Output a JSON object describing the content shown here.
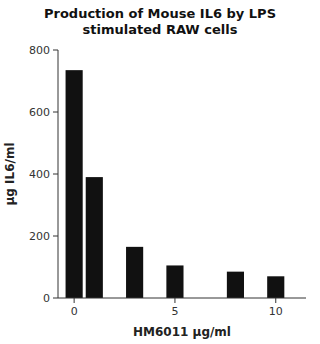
{
  "chart_data": {
    "type": "bar",
    "title": "Production of Mouse IL6 by LPS\nstimulated RAW cells",
    "x_label": "HM6011 µg/ml",
    "y_label": "µg IL6/ml",
    "x": [
      0,
      1,
      3,
      5,
      8,
      10
    ],
    "values": [
      735,
      390,
      165,
      105,
      85,
      70
    ],
    "color": "#111111",
    "xlim": [
      -0.8,
      11.5
    ],
    "xticks": [
      0,
      5,
      10
    ],
    "ylim": [
      0,
      800
    ],
    "yticks": [
      0,
      200,
      400,
      600,
      800
    ],
    "grid": false
  }
}
